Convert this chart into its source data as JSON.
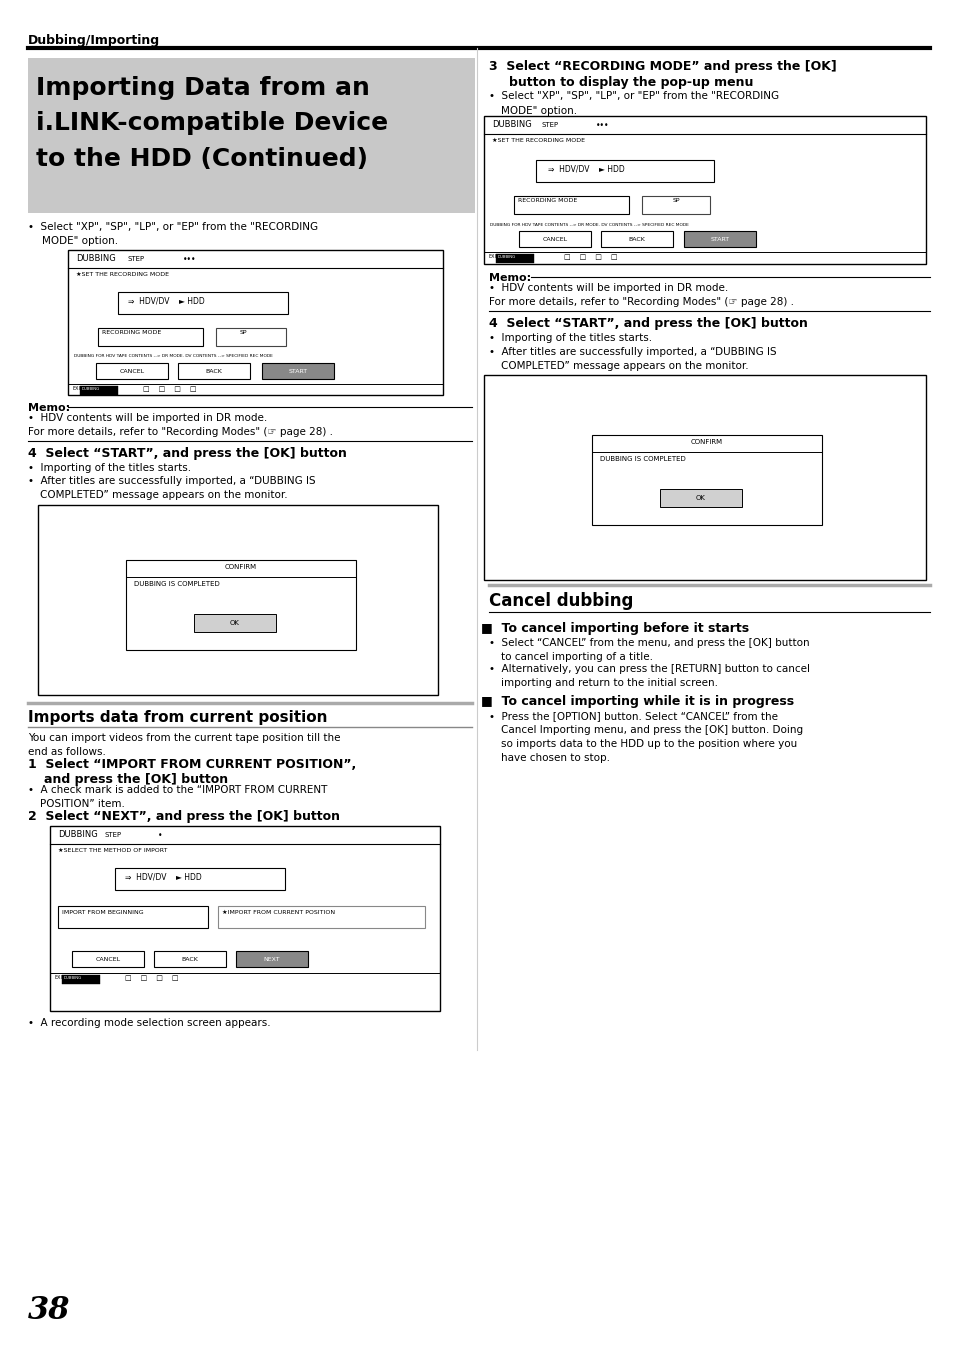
{
  "bg_color": "#ffffff",
  "header_text": "Dubbing/Importing",
  "title_lines": [
    "Importing Data from an",
    "i.LINK-compatible Device",
    "to the HDD (Continued)"
  ],
  "page_number": "38",
  "title_bg": "#c0c0c0"
}
